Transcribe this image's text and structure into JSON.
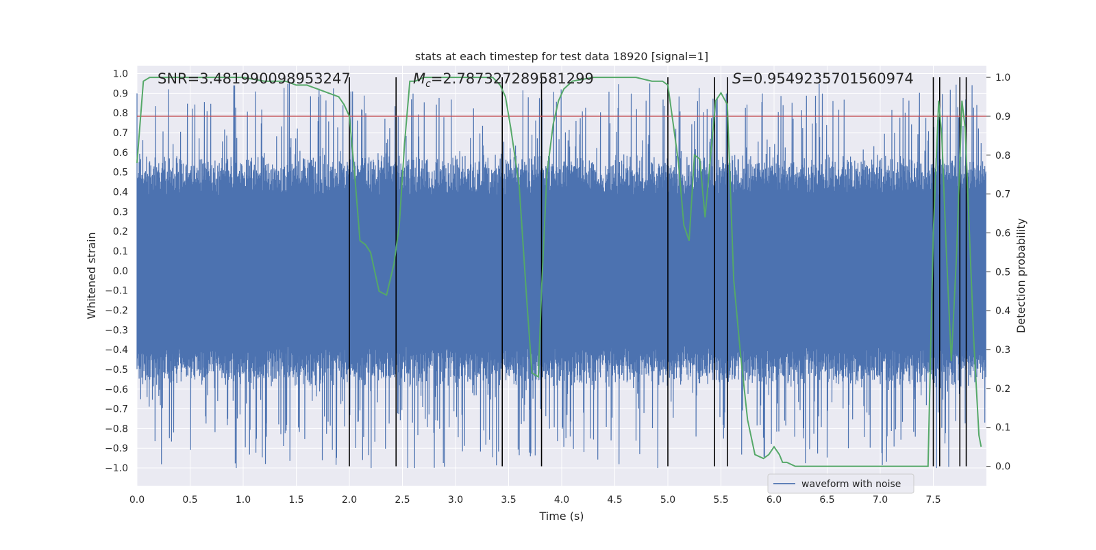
{
  "chart_data": {
    "type": "line",
    "title": "stats at each timestep for test data 18920 [signal=1]",
    "xlabel": "Time (s)",
    "ylabel_left": "Whitened strain",
    "ylabel_right": "Detection probability",
    "xlim": [
      0.0,
      8.0
    ],
    "ylim_left": [
      -1.09,
      1.04
    ],
    "ylim_right": [
      -0.05,
      1.03
    ],
    "x_ticks": [
      "0.0",
      "0.5",
      "1.0",
      "1.5",
      "2.0",
      "2.5",
      "3.0",
      "3.5",
      "4.0",
      "4.5",
      "5.0",
      "5.5",
      "6.0",
      "6.5",
      "7.0",
      "7.5"
    ],
    "y_left_ticks": [
      "1.0",
      "0.9",
      "0.8",
      "0.7",
      "0.6",
      "0.5",
      "0.4",
      "0.3",
      "0.2",
      "0.1",
      "0.0",
      "−0.1",
      "−0.2",
      "−0.3",
      "−0.4",
      "−0.5",
      "−0.6",
      "−0.7",
      "−0.8",
      "−0.9",
      "−1.0"
    ],
    "y_right_ticks": [
      "1.0",
      "0.9",
      "0.8",
      "0.7",
      "0.6",
      "0.5",
      "0.4",
      "0.3",
      "0.2",
      "0.1",
      "0.0"
    ],
    "grid": true,
    "legend": {
      "placement": "lower-right",
      "entries": [
        "waveform with noise"
      ]
    },
    "annotations": {
      "snr": "SNR=3.481990098953247",
      "mc_symbol": "M",
      "mc_sub": "c",
      "mc_value": "=2.787327289581299",
      "s_symbol": "S",
      "s_value": "=0.9549235701560974"
    },
    "threshold": {
      "axis": "right",
      "value": 0.9,
      "color": "#c44e52"
    },
    "vertical_markers": [
      2.0,
      2.44,
      3.44,
      3.81,
      5.0,
      5.44,
      5.56,
      7.5,
      7.56,
      7.75,
      7.81
    ],
    "waveform": {
      "name": "waveform with noise",
      "color": "#4c72b0",
      "n_samples": 1600,
      "core_amplitude": 0.45,
      "peak_positive": 0.95,
      "peak_negative": -1.0,
      "seed": 18920
    },
    "series": [
      {
        "name": "",
        "axis": "right",
        "color": "#55a868",
        "x": [
          0.0,
          0.06,
          0.12,
          0.2,
          0.5,
          0.8,
          1.0,
          1.2,
          1.4,
          1.5,
          1.6,
          1.7,
          1.8,
          1.9,
          1.95,
          2.0,
          2.05,
          2.1,
          2.15,
          2.2,
          2.28,
          2.35,
          2.42,
          2.47,
          2.52,
          2.57,
          2.62,
          2.7,
          2.8,
          3.0,
          3.2,
          3.35,
          3.42,
          3.47,
          3.52,
          3.6,
          3.67,
          3.72,
          3.78,
          3.81,
          3.86,
          3.92,
          3.97,
          4.02,
          4.1,
          4.3,
          4.5,
          4.7,
          4.85,
          4.95,
          5.0,
          5.05,
          5.1,
          5.15,
          5.2,
          5.25,
          5.3,
          5.35,
          5.4,
          5.45,
          5.5,
          5.56,
          5.62,
          5.68,
          5.75,
          5.82,
          5.9,
          5.95,
          6.0,
          6.05,
          6.08,
          6.12,
          6.2,
          6.4,
          6.6,
          6.8,
          7.0,
          7.2,
          7.45,
          7.5,
          7.55,
          7.58,
          7.62,
          7.67,
          7.72,
          7.77,
          7.8,
          7.84,
          7.88,
          7.93,
          7.95
        ],
        "values": [
          0.78,
          0.99,
          1.0,
          1.0,
          1.0,
          1.0,
          1.0,
          0.99,
          0.99,
          0.98,
          0.98,
          0.97,
          0.96,
          0.95,
          0.93,
          0.9,
          0.75,
          0.58,
          0.57,
          0.55,
          0.45,
          0.44,
          0.52,
          0.62,
          0.83,
          0.99,
          0.99,
          1.0,
          1.0,
          1.0,
          1.0,
          1.0,
          0.98,
          0.95,
          0.87,
          0.72,
          0.43,
          0.24,
          0.23,
          0.45,
          0.75,
          0.88,
          0.94,
          0.97,
          0.99,
          1.0,
          1.0,
          1.0,
          0.99,
          0.99,
          0.98,
          0.88,
          0.78,
          0.62,
          0.58,
          0.8,
          0.79,
          0.64,
          0.79,
          0.94,
          0.96,
          0.93,
          0.48,
          0.3,
          0.12,
          0.03,
          0.02,
          0.03,
          0.05,
          0.03,
          0.01,
          0.01,
          0.0,
          0.0,
          0.0,
          0.0,
          0.0,
          0.0,
          0.0,
          0.6,
          0.94,
          0.85,
          0.57,
          0.27,
          0.55,
          0.94,
          0.87,
          0.6,
          0.33,
          0.08,
          0.05
        ]
      }
    ]
  }
}
